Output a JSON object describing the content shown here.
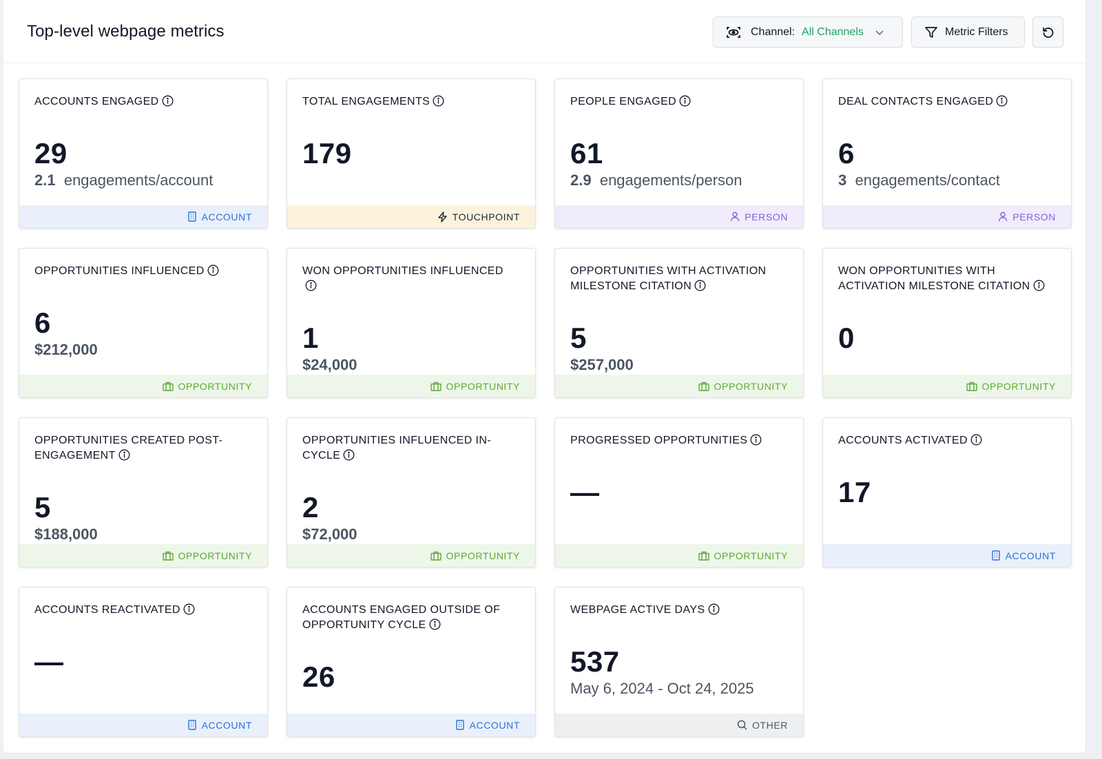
{
  "header": {
    "title": "Top-level webpage metrics",
    "channel_label": "Channel:",
    "channel_value": "All Channels",
    "metric_filters_label": "Metric Filters"
  },
  "colors": {
    "accent_green": "#22a06b",
    "account": "#2f6fd6",
    "person": "#8a5cd8",
    "opportunity": "#5aaa32"
  },
  "cards": [
    {
      "title": "ACCOUNTS ENGAGED",
      "value": "29",
      "sub_num": "2.1",
      "sub_text": "engagements/account",
      "footer": "ACCOUNT",
      "footer_icon": "building-icon"
    },
    {
      "title": "TOTAL ENGAGEMENTS",
      "value": "179",
      "footer": "TOUCHPOINT",
      "footer_icon": "lightning-icon"
    },
    {
      "title": "PEOPLE ENGAGED",
      "value": "61",
      "sub_num": "2.9",
      "sub_text": "engagements/person",
      "footer": "PERSON",
      "footer_icon": "person-icon"
    },
    {
      "title": "DEAL CONTACTS ENGAGED",
      "value": "6",
      "sub_num": "3",
      "sub_text": "engagements/contact",
      "footer": "PERSON",
      "footer_icon": "person-icon"
    },
    {
      "title": "OPPORTUNITIES INFLUENCED",
      "value": "6",
      "sub_money": "$212,000",
      "footer": "OPPORTUNITY",
      "footer_icon": "briefcase-icon"
    },
    {
      "title_line1": "WON OPPORTUNITIES INFLUENCED",
      "value": "1",
      "sub_money": "$24,000",
      "footer": "OPPORTUNITY",
      "footer_icon": "briefcase-icon"
    },
    {
      "title_line1": "OPPORTUNITIES WITH ACTIVATION",
      "title_line2": "MILESTONE CITATION",
      "value": "5",
      "sub_money": "$257,000",
      "footer": "OPPORTUNITY",
      "footer_icon": "briefcase-icon"
    },
    {
      "title_line1": "WON OPPORTUNITIES WITH",
      "title_line2": "ACTIVATION MILESTONE CITATION",
      "value": "0",
      "footer": "OPPORTUNITY",
      "footer_icon": "briefcase-icon"
    },
    {
      "title_line1": "OPPORTUNITIES CREATED POST-",
      "title_line2": "ENGAGEMENT",
      "value": "5",
      "sub_money": "$188,000",
      "footer": "OPPORTUNITY",
      "footer_icon": "briefcase-icon"
    },
    {
      "title_line1": "OPPORTUNITIES INFLUENCED IN-",
      "title_line2": "CYCLE",
      "value": "2",
      "sub_money": "$72,000",
      "footer": "OPPORTUNITY",
      "footer_icon": "briefcase-icon"
    },
    {
      "title": "PROGRESSED OPPORTUNITIES",
      "value": "—",
      "footer": "OPPORTUNITY",
      "footer_icon": "briefcase-icon"
    },
    {
      "title": "ACCOUNTS ACTIVATED",
      "value": "17",
      "footer": "ACCOUNT",
      "footer_icon": "building-icon"
    },
    {
      "title": "ACCOUNTS REACTIVATED",
      "value": "—",
      "footer": "ACCOUNT",
      "footer_icon": "building-icon"
    },
    {
      "title_line1": "ACCOUNTS ENGAGED OUTSIDE OF",
      "title_line2": "OPPORTUNITY CYCLE",
      "value": "26",
      "footer": "ACCOUNT",
      "footer_icon": "building-icon"
    },
    {
      "title": "WEBPAGE ACTIVE DAYS",
      "value": "537",
      "sub_text": "May 6, 2024 - Oct 24, 2025",
      "footer": "OTHER",
      "footer_icon": "search-icon"
    }
  ]
}
